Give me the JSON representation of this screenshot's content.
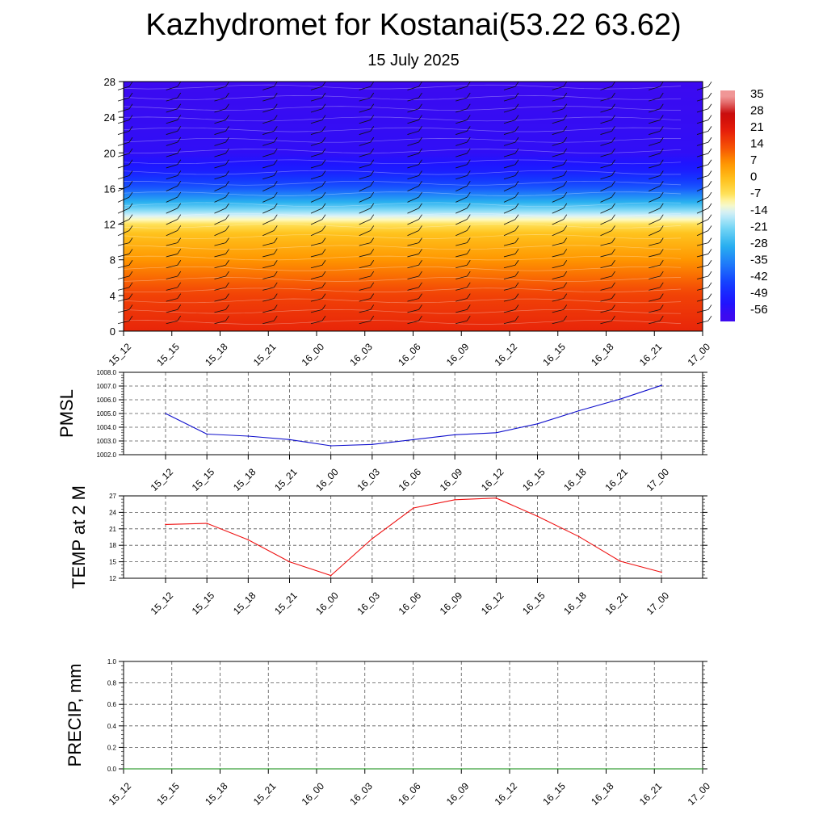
{
  "header": {
    "title": "Kazhydromet for Kostanai(53.22 63.62)",
    "subtitle": "15 July 2025"
  },
  "chart_data": [
    {
      "type": "heatmap",
      "name": "vertical-cross-section",
      "x_tick_labels": [
        "15_12",
        "15_15",
        "15_18",
        "15_21",
        "16_00",
        "16_03",
        "16_06",
        "16_09",
        "16_12",
        "16_15",
        "16_18",
        "16_21",
        "17_00"
      ],
      "y_tick_labels": [
        "0",
        "4",
        "8",
        "12",
        "16",
        "20",
        "24",
        "28"
      ],
      "ylim": [
        0,
        28
      ],
      "colorbar_labels": [
        "35",
        "28",
        "21",
        "14",
        "7",
        "0",
        "-7",
        "-14",
        "-21",
        "-28",
        "-35",
        "-42",
        "-49",
        "-56"
      ],
      "temperature_profile": [
        {
          "level": 0,
          "value": 20
        },
        {
          "level": 4,
          "value": 16
        },
        {
          "level": 8,
          "value": 7
        },
        {
          "level": 11,
          "value": 0
        },
        {
          "level": 12,
          "value": -6
        },
        {
          "level": 13,
          "value": -14
        },
        {
          "level": 14.5,
          "value": -28
        },
        {
          "level": 16,
          "value": -40
        },
        {
          "level": 18,
          "value": -50
        },
        {
          "level": 20,
          "value": -55
        },
        {
          "level": 28,
          "value": -57
        }
      ],
      "colors": {
        "low": "#2a1aff",
        "mid_cold": "#1ea7f0",
        "neutral": "#fff6a8",
        "warm": "#ffa000",
        "hot": "#e81c0c"
      }
    },
    {
      "type": "line",
      "name": "pmsl",
      "ylabel": "PMSL",
      "x_tick_labels": [
        "15_12",
        "15_15",
        "15_18",
        "15_21",
        "16_00",
        "16_03",
        "16_06",
        "16_09",
        "16_12",
        "16_15",
        "16_18",
        "16_21",
        "17_00"
      ],
      "y_tick_labels": [
        "1002.0",
        "1003.0",
        "1004.0",
        "1005.0",
        "1006.0",
        "1007.0",
        "1008.0"
      ],
      "ylim": [
        1002,
        1008
      ],
      "values": [
        1005.0,
        1003.5,
        1003.35,
        1003.1,
        1002.65,
        1002.75,
        1003.1,
        1003.45,
        1003.6,
        1004.25,
        1005.2,
        1006.05,
        1007.05
      ],
      "color": "#1010cc"
    },
    {
      "type": "line",
      "name": "temp2m",
      "ylabel": "TEMP at 2 M",
      "x_tick_labels": [
        "15_12",
        "15_15",
        "15_18",
        "15_21",
        "16_00",
        "16_03",
        "16_06",
        "16_09",
        "16_12",
        "16_15",
        "16_18",
        "16_21",
        "17_00"
      ],
      "y_tick_labels": [
        "12",
        "15",
        "18",
        "21",
        "24",
        "27"
      ],
      "ylim": [
        12,
        27
      ],
      "values": [
        21.8,
        22.0,
        19.0,
        15.0,
        12.5,
        19.2,
        24.8,
        26.3,
        26.6,
        23.3,
        19.6,
        15.1,
        13.1
      ],
      "color": "#ee1010"
    },
    {
      "type": "line",
      "name": "precip",
      "ylabel": "PRECIP, mm",
      "x_tick_labels": [
        "15_12",
        "15_15",
        "15_18",
        "15_21",
        "16_00",
        "16_03",
        "16_06",
        "16_09",
        "16_12",
        "16_15",
        "16_18",
        "16_21",
        "17_00"
      ],
      "y_tick_labels": [
        "0.0",
        "0.2",
        "0.4",
        "0.6",
        "0.8",
        "1.0"
      ],
      "ylim": [
        0,
        1
      ],
      "values": [
        0,
        0,
        0,
        0,
        0,
        0,
        0,
        0,
        0,
        0,
        0,
        0,
        0
      ],
      "color": "#0a8a0a"
    }
  ]
}
